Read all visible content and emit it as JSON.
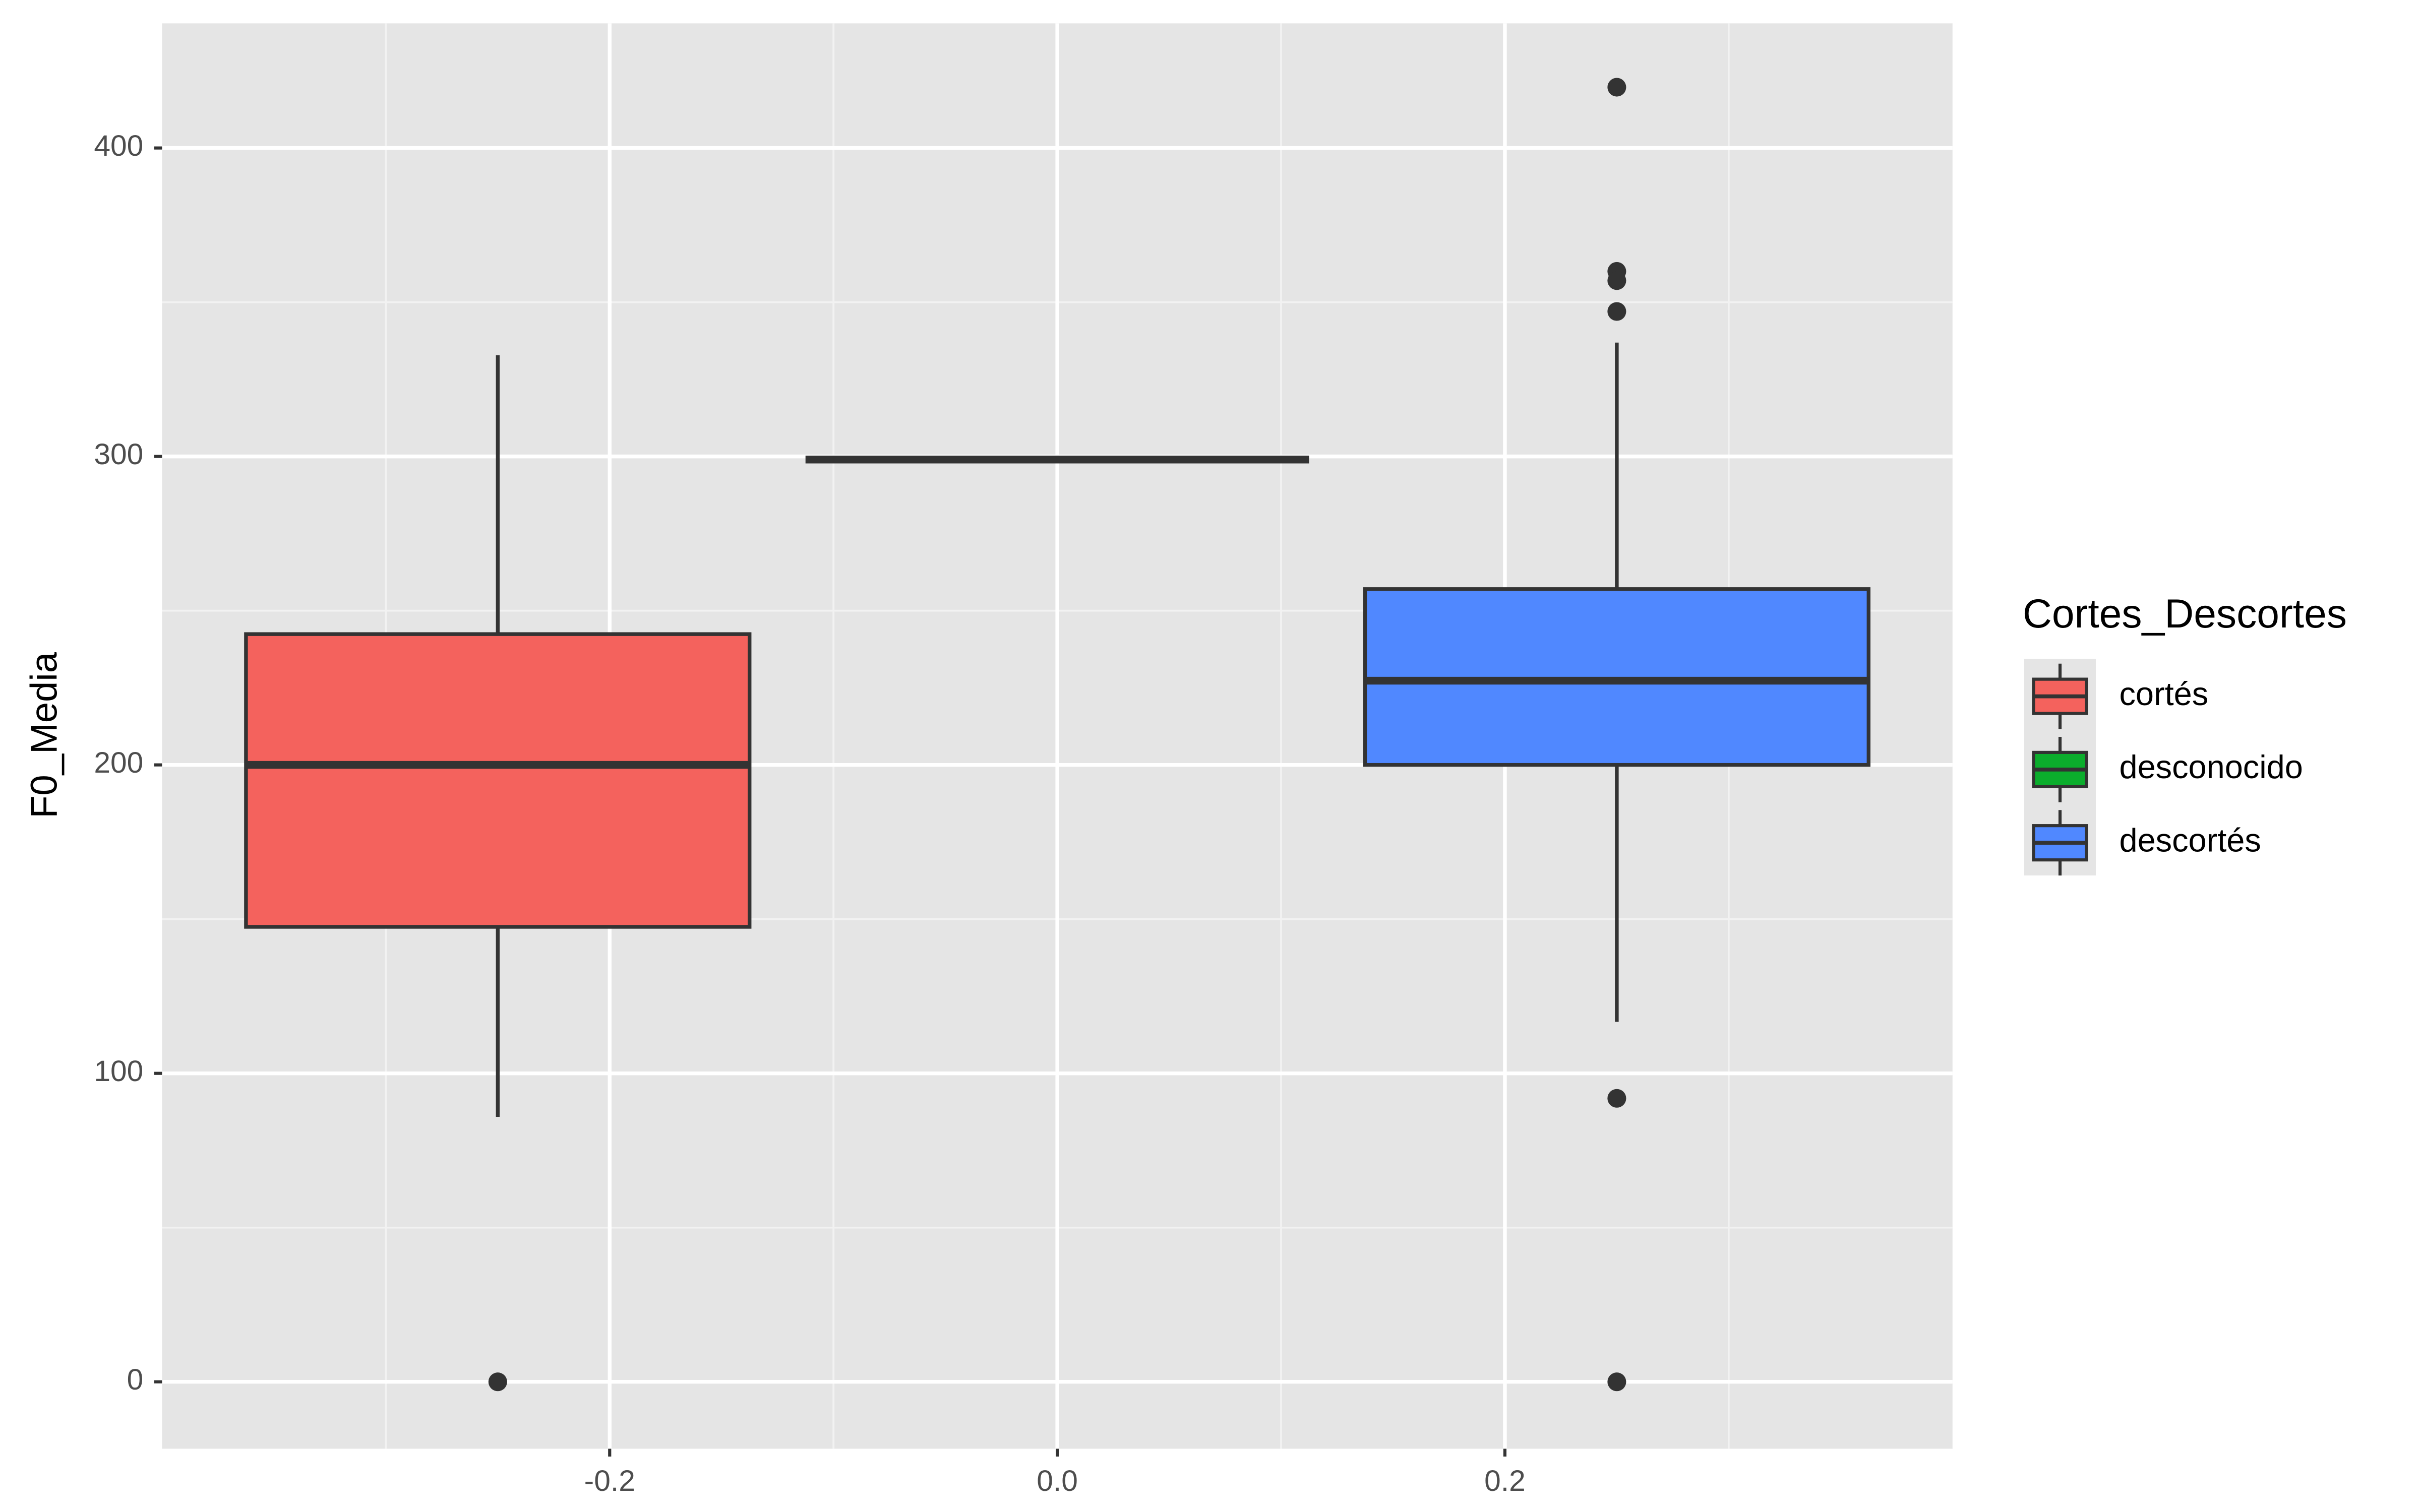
{
  "chart_data": {
    "type": "boxplot",
    "y_label": "F0_Media",
    "legend_title": "Cortes_Descortes",
    "legend_position": "right",
    "grid": true,
    "xlim": [
      -0.4,
      0.4
    ],
    "xticks": [
      -0.2,
      {
        "value": 0,
        "label": "0.0"
      },
      0.2
    ],
    "minor_xticks": [
      -0.3,
      -0.1,
      0.1,
      0.3
    ],
    "ylim": [
      -21.7,
      440.4
    ],
    "yticks": [
      0,
      100,
      200,
      300,
      400
    ],
    "minor_yticks": [
      50,
      150,
      250,
      350
    ],
    "box_width": 0.225,
    "series": [
      {
        "name": "cortés",
        "color": "#f4625d",
        "x": -0.25,
        "min": 85.9,
        "q1": 147.5,
        "median": 200,
        "q3": 242.4,
        "max": 332.8,
        "outliers": [
          0
        ]
      },
      {
        "name": "desconocido",
        "color": "#0bad2c",
        "x": 0,
        "min": 299,
        "q1": 299,
        "median": 299,
        "q3": 299,
        "max": 299,
        "outliers": []
      },
      {
        "name": "descortés",
        "color": "#5088ff",
        "x": 0.25,
        "min": 116.7,
        "q1": 200,
        "median": 227.3,
        "q3": 257,
        "max": 336.9,
        "outliers": [
          419.7,
          360,
          357,
          347,
          91.9,
          0
        ]
      }
    ]
  }
}
